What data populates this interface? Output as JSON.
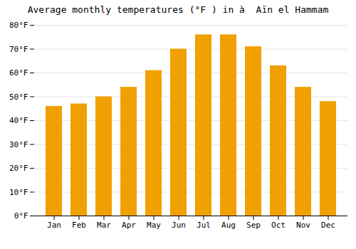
{
  "chart_data": {
    "type": "bar",
    "title": "Average monthly temperatures (°F ) in à  Aïn el Hammam",
    "categories": [
      "Jan",
      "Feb",
      "Mar",
      "Apr",
      "May",
      "Jun",
      "Jul",
      "Aug",
      "Sep",
      "Oct",
      "Nov",
      "Dec"
    ],
    "values": [
      46,
      47,
      50,
      54,
      61,
      70,
      76,
      76,
      71,
      63,
      54,
      48
    ],
    "color": "#F0A000",
    "ylim": [
      0,
      80
    ],
    "yticks": [
      {
        "value": 0,
        "label": "0°F"
      },
      {
        "value": 10,
        "label": "10°F"
      },
      {
        "value": 20,
        "label": "20°F"
      },
      {
        "value": 30,
        "label": "30°F"
      },
      {
        "value": 40,
        "label": "40°F"
      },
      {
        "value": 50,
        "label": "50°F"
      },
      {
        "value": 60,
        "label": "60°F"
      },
      {
        "value": 70,
        "label": "70°F"
      },
      {
        "value": 80,
        "label": "80°F"
      }
    ],
    "grid": true
  }
}
